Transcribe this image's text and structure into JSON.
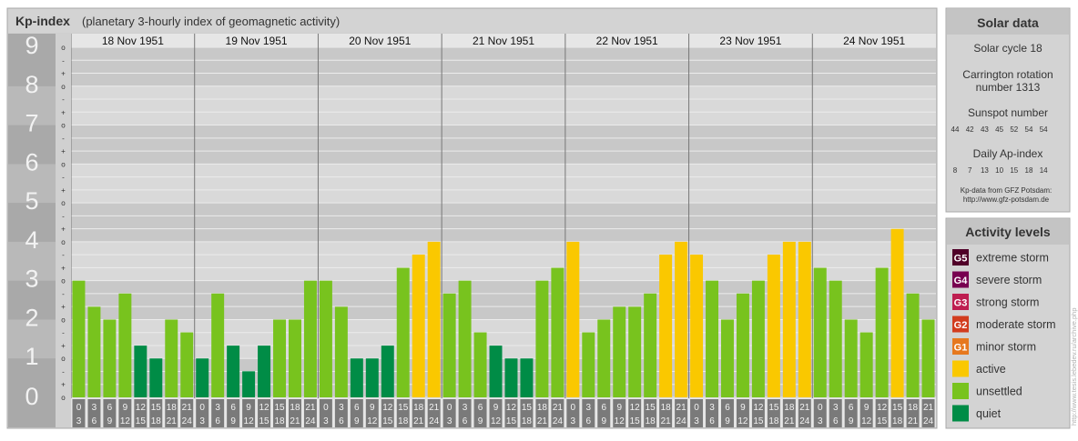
{
  "header": {
    "title": "Kp-index",
    "subtitle": "(planetary 3-hourly index of geomagnetic activity)"
  },
  "chart_data": {
    "type": "bar",
    "ylim": [
      0,
      9
    ],
    "y_ticks": [
      "0",
      "1",
      "2",
      "3",
      "4",
      "5",
      "6",
      "7",
      "8",
      "9"
    ],
    "sub_ticks": [
      "+",
      "o",
      "-"
    ],
    "top_sub_tick": "o",
    "bottom_sub_tick": "o",
    "days": [
      "18 Nov 1951",
      "19 Nov 1951",
      "20 Nov 1951",
      "21 Nov 1951",
      "22 Nov 1951",
      "23 Nov 1951",
      "24 Nov 1951"
    ],
    "interval_start": [
      "0",
      "3",
      "6",
      "9",
      "12",
      "15",
      "18",
      "21"
    ],
    "interval_end": [
      "3",
      "6",
      "9",
      "12",
      "15",
      "18",
      "21",
      "24"
    ],
    "values": [
      [
        3.0,
        2.33,
        2.0,
        2.67,
        1.33,
        1.0,
        2.0,
        1.67
      ],
      [
        1.0,
        2.67,
        1.33,
        0.67,
        1.33,
        2.0,
        2.0,
        3.0
      ],
      [
        3.0,
        2.33,
        1.0,
        1.0,
        1.33,
        3.33,
        3.67,
        4.0
      ],
      [
        2.67,
        3.0,
        1.67,
        1.33,
        1.0,
        1.0,
        3.0,
        3.33
      ],
      [
        4.0,
        1.67,
        2.0,
        2.33,
        2.33,
        2.67,
        3.67,
        4.0
      ],
      [
        3.67,
        3.0,
        2.0,
        2.67,
        3.0,
        3.67,
        4.0,
        4.0
      ],
      [
        3.33,
        3.0,
        2.0,
        1.67,
        3.33,
        4.33,
        2.67,
        2.0
      ]
    ],
    "level_colors": {
      "quiet": "#008c46",
      "unsettled": "#78c31e",
      "active": "#fac800",
      "minor": "#e6781e",
      "moderate": "#d23c1e",
      "strong": "#be1e50",
      "severe": "#780050",
      "extreme": "#500028"
    },
    "grid": true
  },
  "solar": {
    "heading": "Solar data",
    "cycle": "Solar cycle 18",
    "carrington_line1": "Carrington rotation",
    "carrington_line2": "number 1313",
    "sunspot_heading": "Sunspot number",
    "sunspot_values": [
      "44",
      "42",
      "43",
      "45",
      "52",
      "54",
      "54"
    ],
    "ap_heading": "Daily Ap-index",
    "ap_values": [
      "8",
      "7",
      "13",
      "10",
      "15",
      "18",
      "14"
    ],
    "source_line1": "Kp-data from GFZ Potsdam:",
    "source_line2": "http://www.gfz-potsdam.de"
  },
  "legend": {
    "heading": "Activity levels",
    "items": [
      {
        "code": "G5",
        "label": "extreme storm",
        "color": "#500028"
      },
      {
        "code": "G4",
        "label": "severe storm",
        "color": "#780050"
      },
      {
        "code": "G3",
        "label": "strong storm",
        "color": "#be1e50"
      },
      {
        "code": "G2",
        "label": "moderate storm",
        "color": "#d23c1e"
      },
      {
        "code": "G1",
        "label": "minor storm",
        "color": "#e6781e"
      },
      {
        "code": "",
        "label": "active",
        "color": "#fac800"
      },
      {
        "code": "",
        "label": "unsettled",
        "color": "#78c31e"
      },
      {
        "code": "",
        "label": "quiet",
        "color": "#008c46"
      }
    ]
  },
  "watermark": "http://www.tesis.lebedev.ru/archive.php"
}
